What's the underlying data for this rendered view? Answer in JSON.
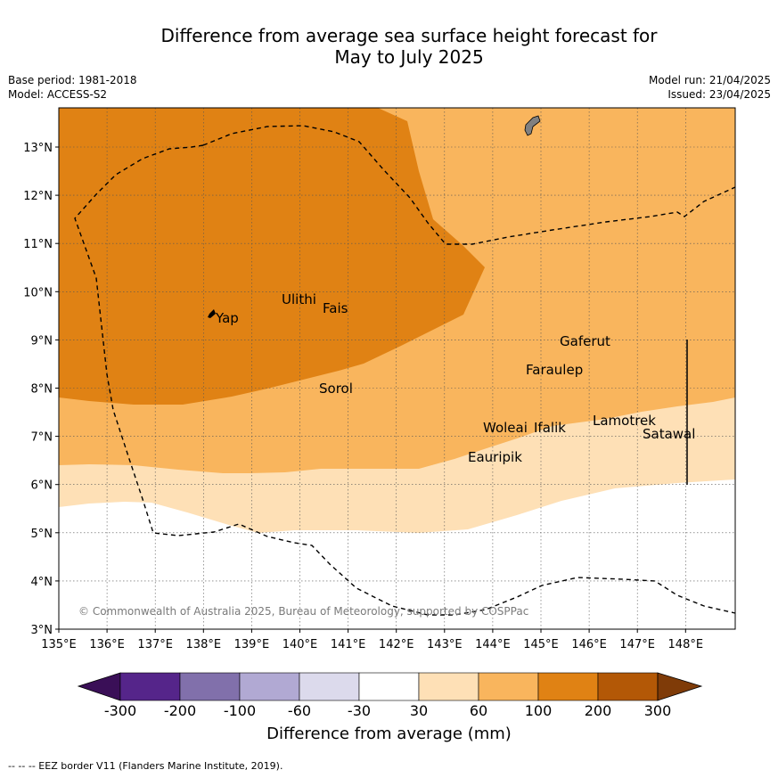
{
  "title_line1": "Difference from average sea surface height forecast for",
  "title_line2": "May to July 2025",
  "meta": {
    "base_period": "Base period: 1981-2018",
    "model": "Model: ACCESS-S2",
    "model_run": "Model run: 21/04/2025",
    "issued": "Issued: 23/04/2025"
  },
  "map": {
    "lon_ticks": [
      "135°E",
      "136°E",
      "137°E",
      "138°E",
      "139°E",
      "140°E",
      "141°E",
      "142°E",
      "143°E",
      "144°E",
      "145°E",
      "146°E",
      "147°E",
      "148°E"
    ],
    "lat_ticks": [
      "3°N",
      "4°N",
      "5°N",
      "6°N",
      "7°N",
      "8°N",
      "9°N",
      "10°N",
      "11°N",
      "12°N",
      "13°N"
    ],
    "places": [
      {
        "name": "Yap"
      },
      {
        "name": "Ulithi"
      },
      {
        "name": "Fais"
      },
      {
        "name": "Sorol"
      },
      {
        "name": "Gaferut"
      },
      {
        "name": "Faraulep"
      },
      {
        "name": "Woleai"
      },
      {
        "name": "Ifalik"
      },
      {
        "name": "Lamotrek"
      },
      {
        "name": "Satawal"
      },
      {
        "name": "Eauripik"
      }
    ],
    "copyright": "© Commonwealth of Australia 2025, Bureau of Meteorology, supported by COSPPac"
  },
  "colorbar": {
    "boundaries": [
      "-300",
      "-200",
      "-100",
      "-60",
      "-30",
      "30",
      "60",
      "100",
      "200",
      "300"
    ],
    "colors": [
      "#3a0f57",
      "#55258a",
      "#8170ab",
      "#b1a9d3",
      "#dcdaec",
      "#ffffff",
      "#fee0b6",
      "#f9b55d",
      "#e08214",
      "#b35806",
      "#7f3b08"
    ],
    "title": "Difference from average (mm)"
  },
  "footer": "--  --  -- EEZ border V11 (Flanders Marine Institute, 2019)."
}
